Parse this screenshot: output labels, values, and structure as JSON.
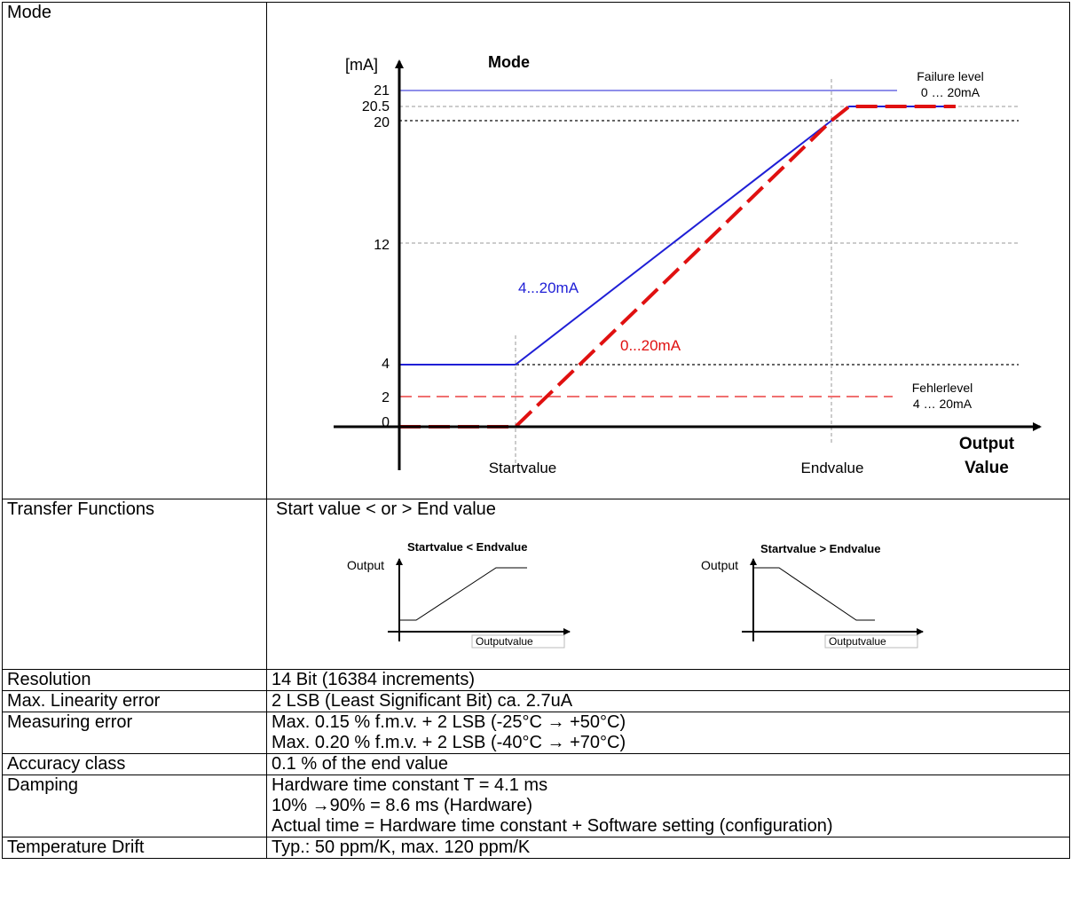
{
  "rows": [
    {
      "label": "Mode"
    },
    {
      "label": "Transfer Functions",
      "value": "Start value < or > End value"
    },
    {
      "label": "Resolution",
      "value": "14 Bit (16384 increments)"
    },
    {
      "label": "Max. Linearity error",
      "value": "2 LSB (Least Significant Bit) ca. 2.7uA"
    },
    {
      "label": "Measuring error",
      "lines": [
        "Max. 0.15 % f.m.v. + 2 LSB (-25°C → +50°C)",
        "Max. 0.20 % f.m.v. + 2 LSB (-40°C → +70°C)"
      ]
    },
    {
      "label": "Accuracy class",
      "value": "0.1 % of the end value"
    },
    {
      "label": "Damping",
      "lines": [
        "Hardware time constant T = 4.1 ms",
        "10% →90% = 8.6 ms (Hardware)",
        "Actual time = Hardware time constant + Software setting (configuration)"
      ]
    },
    {
      "label": "Temperature Drift",
      "value": "Typ.: 50 ppm/K, max. 120 ppm/K"
    }
  ],
  "mode_chart": {
    "title": "Mode",
    "y_unit": "[mA]",
    "y_ticks": [
      "21",
      "20.5",
      "20",
      "12",
      "4",
      "2",
      "0"
    ],
    "x_axis_label_line1": "Output",
    "x_axis_label_line2": "Value",
    "start_label": "Startvalue",
    "end_label": "Endvalue",
    "failure_level_line1": "Failure level",
    "failure_level_line2": "0 … 20mA",
    "fehler_level_line1": "Fehlerlevel",
    "fehler_level_line2": "4 … 20mA",
    "series_4_20_label": "4...20mA",
    "series_0_20_label": "0...20mA",
    "colors": {
      "blue": "#1f1fd6",
      "red": "#e01010",
      "light_red": "#f07070",
      "grid": "#999999"
    }
  },
  "transfer_charts": {
    "left_title": "Startvalue < Endvalue",
    "right_title": "Startvalue > Endvalue",
    "y_label": "Output",
    "x_label": "Outputvalue"
  }
}
